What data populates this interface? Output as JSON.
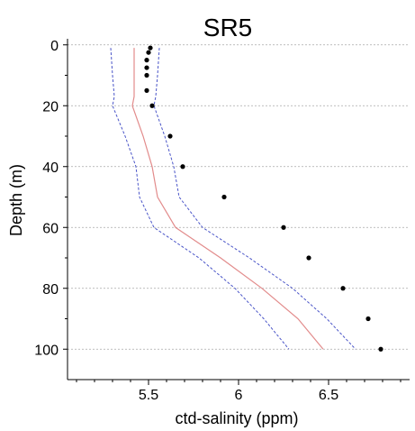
{
  "chart_data": {
    "type": "line",
    "title": "SR5",
    "xlabel": "ctd-salinity (ppm)",
    "ylabel": "Depth (m)",
    "xlim": [
      5.05,
      6.95
    ],
    "ylim": [
      110,
      -2
    ],
    "x_ticks": [
      5.5,
      6,
      6.5
    ],
    "x_tick_labels": [
      "5.5",
      "6",
      "6.5"
    ],
    "x_minor_ticks": [
      5.1,
      5.2,
      5.3,
      5.4,
      5.6,
      5.7,
      5.8,
      5.9,
      6.1,
      6.2,
      6.3,
      6.4,
      6.6,
      6.7,
      6.8,
      6.9
    ],
    "y_ticks": [
      0,
      20,
      40,
      60,
      80,
      100
    ],
    "y_tick_labels": [
      "0",
      "20",
      "40",
      "60",
      "80",
      "100"
    ],
    "y_minor_ticks": [
      10,
      30,
      50,
      70,
      90
    ],
    "grid": "horizontal",
    "series": [
      {
        "kind": "line",
        "color": "#e28b8b",
        "style": "solid",
        "points": [
          [
            5.42,
            1
          ],
          [
            5.42,
            10
          ],
          [
            5.42,
            17
          ],
          [
            5.41,
            20
          ],
          [
            5.47,
            30
          ],
          [
            5.52,
            40
          ],
          [
            5.55,
            50
          ],
          [
            5.65,
            60
          ],
          [
            5.9,
            70
          ],
          [
            6.13,
            80
          ],
          [
            6.33,
            90
          ],
          [
            6.47,
            100
          ]
        ]
      },
      {
        "kind": "line",
        "color": "#4a55c8",
        "style": "dashed",
        "points": [
          [
            5.29,
            1
          ],
          [
            5.3,
            10
          ],
          [
            5.31,
            17
          ],
          [
            5.3,
            20
          ],
          [
            5.37,
            30
          ],
          [
            5.43,
            40
          ],
          [
            5.45,
            50
          ],
          [
            5.53,
            60
          ],
          [
            5.78,
            70
          ],
          [
            5.98,
            80
          ],
          [
            6.14,
            90
          ],
          [
            6.28,
            100
          ]
        ]
      },
      {
        "kind": "line",
        "color": "#4a55c8",
        "style": "dashed",
        "points": [
          [
            5.56,
            1
          ],
          [
            5.55,
            10
          ],
          [
            5.54,
            17
          ],
          [
            5.53,
            20
          ],
          [
            5.59,
            30
          ],
          [
            5.64,
            40
          ],
          [
            5.67,
            50
          ],
          [
            5.8,
            60
          ],
          [
            6.06,
            70
          ],
          [
            6.3,
            80
          ],
          [
            6.49,
            90
          ],
          [
            6.65,
            100
          ]
        ]
      },
      {
        "kind": "scatter",
        "color": "#000000",
        "points": [
          [
            5.51,
            1
          ],
          [
            5.5,
            2.5
          ],
          [
            5.49,
            5
          ],
          [
            5.49,
            7.5
          ],
          [
            5.49,
            10
          ],
          [
            5.49,
            15
          ],
          [
            5.52,
            20
          ],
          [
            5.62,
            30
          ],
          [
            5.69,
            40
          ],
          [
            5.92,
            50
          ],
          [
            6.25,
            60
          ],
          [
            6.39,
            70
          ],
          [
            6.58,
            80
          ],
          [
            6.72,
            90
          ],
          [
            6.79,
            100
          ]
        ]
      }
    ]
  }
}
